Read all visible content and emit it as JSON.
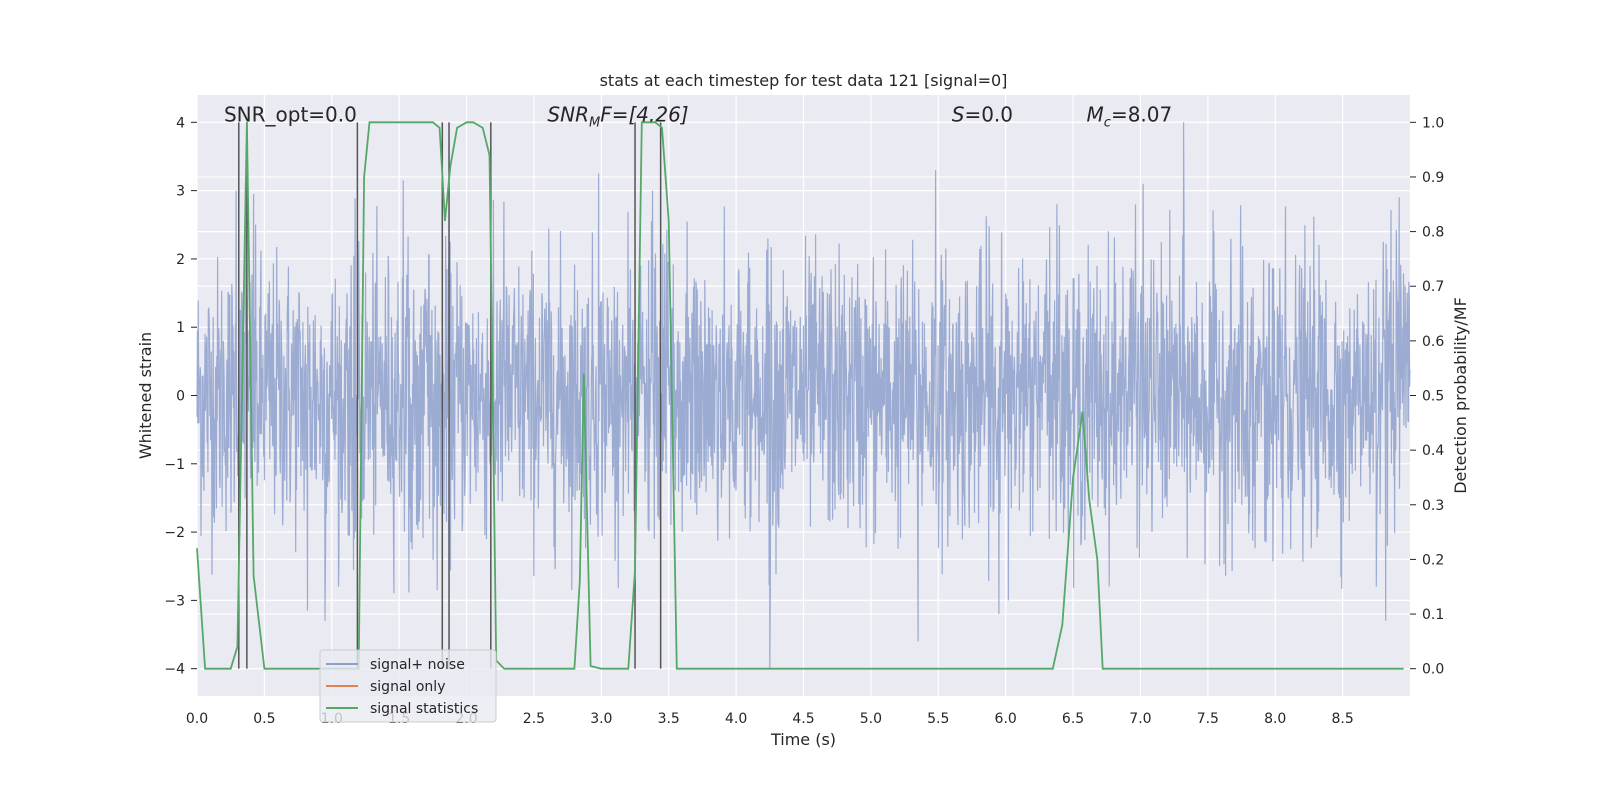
{
  "chart_data": {
    "type": "line",
    "title": "stats at each timestep for test data 121 [signal=0]",
    "xlabel": "Time (s)",
    "ylabel_left": "Whitened strain",
    "ylabel_right": "Detection probability/MF",
    "xlim": [
      0,
      9.0
    ],
    "ylim_left": [
      -4.4,
      4.4
    ],
    "ylim_right": [
      -0.05,
      1.05
    ],
    "xticks": [
      "0.0",
      "0.5",
      "1.0",
      "1.5",
      "2.0",
      "2.5",
      "3.0",
      "3.5",
      "4.0",
      "4.5",
      "5.0",
      "5.5",
      "6.0",
      "6.5",
      "7.0",
      "7.5",
      "8.0",
      "8.5"
    ],
    "xtick_values": [
      0,
      0.5,
      1,
      1.5,
      2,
      2.5,
      3,
      3.5,
      4,
      4.5,
      5,
      5.5,
      6,
      6.5,
      7,
      7.5,
      8,
      8.5
    ],
    "yticks_left": [
      "4",
      "3",
      "2",
      "1",
      "0",
      "−1",
      "−2",
      "−3",
      "−4"
    ],
    "ytick_values_left": [
      4,
      3,
      2,
      1,
      0,
      -1,
      -2,
      -3,
      -4
    ],
    "yticks_right": [
      "1.0",
      "0.9",
      "0.8",
      "0.7",
      "0.6",
      "0.5",
      "0.4",
      "0.3",
      "0.2",
      "0.1",
      "0.0"
    ],
    "ytick_values_right": [
      1.0,
      0.9,
      0.8,
      0.7,
      0.6,
      0.5,
      0.4,
      0.3,
      0.2,
      0.1,
      0.0
    ],
    "annotations": {
      "snr_opt": "SNR_opt=0.0",
      "snr_mf_base": "SNR",
      "snr_mf_sub": "M",
      "snr_mf_rest": "F=[4.26]",
      "s_sym": "S",
      "s_rest": "=0.0",
      "mc_sym": "M",
      "mc_sub": "c",
      "mc_rest": "=8.07"
    },
    "legend": {
      "position": "lower-left",
      "entries": [
        {
          "label": "signal+ noise",
          "color": "#8da0cb"
        },
        {
          "label": "signal only",
          "color": "#dd8452"
        },
        {
          "label": "signal statistics",
          "color": "#55a868"
        }
      ]
    },
    "noise": {
      "name": "signal+ noise",
      "color": "#8da0cb",
      "description": "dense noisy whitened strain, roughly within -3 to 3",
      "spikes": [
        {
          "x": 0.29,
          "y": 3.0
        },
        {
          "x": 0.36,
          "y": 3.1
        },
        {
          "x": 0.42,
          "y": 2.95
        },
        {
          "x": 1.53,
          "y": 3.15
        },
        {
          "x": 2.98,
          "y": 3.25
        },
        {
          "x": 3.38,
          "y": 3.0
        },
        {
          "x": 5.48,
          "y": 3.3
        },
        {
          "x": 6.38,
          "y": 2.8
        },
        {
          "x": 7.02,
          "y": 3.1
        },
        {
          "x": 7.32,
          "y": 4.0
        },
        {
          "x": 8.92,
          "y": 2.9
        },
        {
          "x": 0.82,
          "y": -3.15
        },
        {
          "x": 0.95,
          "y": -3.3
        },
        {
          "x": 4.25,
          "y": -4.0
        },
        {
          "x": 5.35,
          "y": -3.6
        },
        {
          "x": 5.95,
          "y": -3.2
        },
        {
          "x": 6.02,
          "y": -3.0
        },
        {
          "x": 8.82,
          "y": -3.3
        },
        {
          "x": 8.75,
          "y": -2.8
        }
      ]
    },
    "signal_only": {
      "name": "signal only",
      "color": "#dd8452",
      "values": "zero (no injected signal)"
    },
    "series": [
      {
        "name": "signal statistics",
        "color": "#55a868",
        "axis": "right",
        "x": [
          0.0,
          0.06,
          0.1,
          0.25,
          0.3,
          0.33,
          0.37,
          0.42,
          0.5,
          1.18,
          1.2,
          1.24,
          1.28,
          1.75,
          1.8,
          1.84,
          1.88,
          1.93,
          2.0,
          2.05,
          2.12,
          2.17,
          2.22,
          2.28,
          2.33,
          2.8,
          2.84,
          2.87,
          2.92,
          3.0,
          3.05,
          3.2,
          3.25,
          3.3,
          3.4,
          3.45,
          3.5,
          3.56,
          3.6,
          6.35,
          6.42,
          6.5,
          6.57,
          6.62,
          6.68,
          6.72,
          8.95
        ],
        "values": [
          0.22,
          0.0,
          0.0,
          0.0,
          0.04,
          0.45,
          1.0,
          0.17,
          0.0,
          0.0,
          0.0,
          0.9,
          1.0,
          1.0,
          0.99,
          0.82,
          0.92,
          0.99,
          1.0,
          1.0,
          0.99,
          0.94,
          0.015,
          0.0,
          0.0,
          0.0,
          0.16,
          0.54,
          0.005,
          0.0,
          0.0,
          0.0,
          0.18,
          1.0,
          1.0,
          0.99,
          0.82,
          0.0,
          0.0,
          0.0,
          0.08,
          0.35,
          0.47,
          0.31,
          0.2,
          0.0,
          0.0
        ]
      }
    ],
    "vlines": {
      "color": "#555555",
      "x": [
        0.31,
        0.37,
        1.19,
        1.82,
        1.87,
        2.18,
        3.25,
        3.44
      ],
      "ymin": -0.05,
      "ymax": 1.0
    }
  }
}
